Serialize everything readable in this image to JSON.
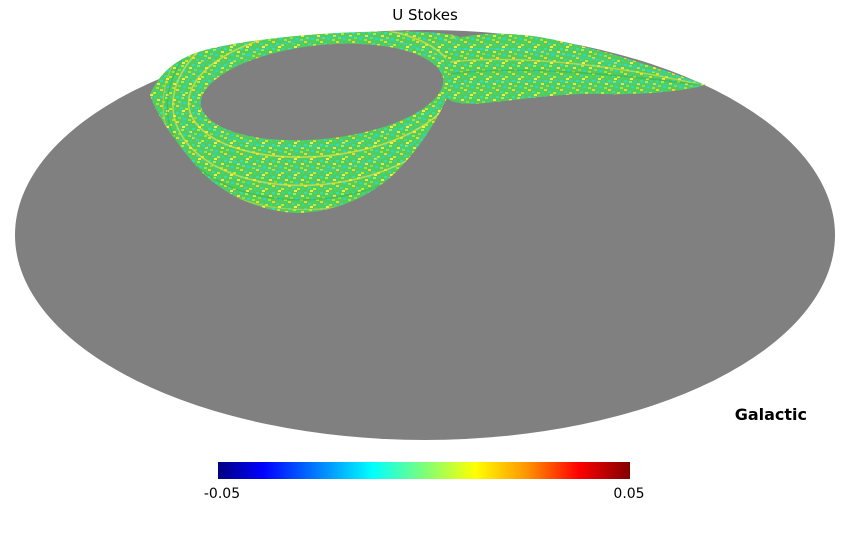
{
  "chart_data": {
    "type": "heatmap",
    "title": "U Stokes",
    "projection": "mollweide",
    "coordinate_system": "Galactic",
    "colorbar": {
      "min": -0.05,
      "max": 0.05,
      "min_label": "-0.05",
      "max_label": "0.05",
      "colormap": "jet",
      "orientation": "horizontal",
      "stops": [
        {
          "offset": "0%",
          "color": "#000080"
        },
        {
          "offset": "11%",
          "color": "#0000ff"
        },
        {
          "offset": "37.5%",
          "color": "#00ffff"
        },
        {
          "offset": "50%",
          "color": "#7cff79"
        },
        {
          "offset": "62.5%",
          "color": "#ffff00"
        },
        {
          "offset": "75%",
          "color": "#ff9400"
        },
        {
          "offset": "87.5%",
          "color": "#ff0000"
        },
        {
          "offset": "100%",
          "color": "#800000"
        }
      ]
    },
    "masked_color": "#808080",
    "background_color": "#ffffff",
    "masked_description": "Unobserved sky rendered as uniform gray over the full Mollweide ellipse",
    "observed_region": {
      "description": "Ring-scan coverage band in the upper sky: a speckled annulus surrounding an unobserved inner oval in the upper-left quadrant, a thick bowl-shaped band below it, and a tapering lens-shaped wing hugging the upper-right limb of the projection",
      "approx_value_range": [
        -0.02,
        0.02
      ],
      "dominant_colors": [
        "#50cd62",
        "#2fd6c8",
        "#b9ea2f",
        "#ffe135",
        "#35e0ae"
      ]
    }
  }
}
